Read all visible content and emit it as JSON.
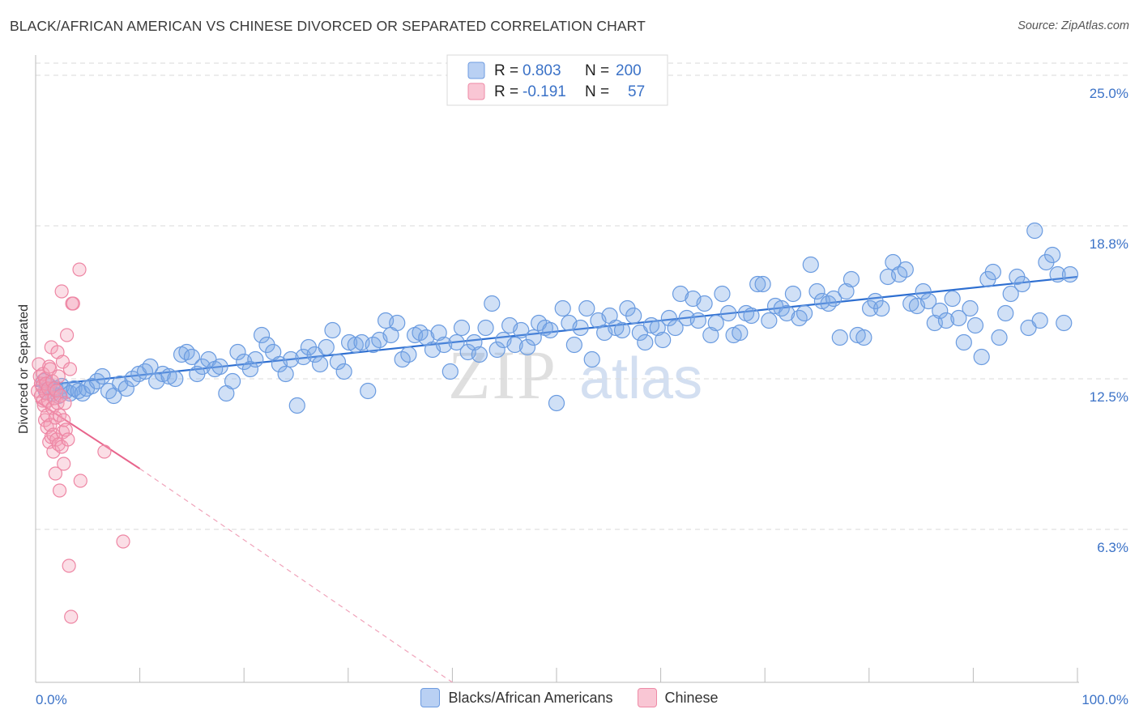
{
  "header": {
    "title": "BLACK/AFRICAN AMERICAN VS CHINESE DIVORCED OR SEPARATED CORRELATION CHART",
    "source": "Source: ZipAtlas.com"
  },
  "watermark": {
    "zip": "ZIP",
    "atlas": "atlas"
  },
  "legend_box": {
    "rows": [
      {
        "r_label": "R =",
        "r_value": "0.803",
        "n_label": "N =",
        "n_value": "200",
        "color": "#9dbff0",
        "stroke": "#6d9be0"
      },
      {
        "r_label": "R =",
        "r_value": "-0.191",
        "n_label": "N =",
        "n_value": "57",
        "color": "#f7b6c8",
        "stroke": "#ee8aa6"
      }
    ]
  },
  "chart_data": {
    "type": "scatter",
    "title": "BLACK/AFRICAN AMERICAN VS CHINESE DIVORCED OR SEPARATED CORRELATION CHART",
    "xlabel": "",
    "ylabel": "Divorced or Separated",
    "xlim": [
      0,
      100
    ],
    "ylim": [
      0,
      25.6
    ],
    "x_tick_labels": [
      "0.0%",
      "100.0%"
    ],
    "y_ticks": [
      6.3,
      12.5,
      18.8,
      25.0
    ],
    "y_tick_labels": [
      "6.3%",
      "12.5%",
      "18.8%",
      "25.0%"
    ],
    "grid": "horizontal dashed",
    "legend_position": "top-center",
    "series": [
      {
        "name": "Blacks/African Americans",
        "color": "#6a9be0",
        "fill": "rgba(120,165,230,0.35)",
        "trend": {
          "x0": 0,
          "y0": 12.2,
          "x1": 100,
          "y1": 16.7,
          "color": "#2e6fd1"
        },
        "points": [
          [
            0.8,
            12.4
          ],
          [
            1.0,
            12.0
          ],
          [
            1.3,
            12.2
          ],
          [
            1.6,
            11.9
          ],
          [
            1.9,
            12.1
          ],
          [
            2.2,
            11.8
          ],
          [
            2.5,
            12.2
          ],
          [
            2.9,
            12.0
          ],
          [
            3.3,
            11.9
          ],
          [
            3.7,
            12.1
          ],
          [
            4.1,
            12.0
          ],
          [
            4.5,
            11.9
          ],
          [
            4.9,
            12.1
          ],
          [
            5.4,
            12.2
          ],
          [
            5.9,
            12.4
          ],
          [
            6.4,
            12.6
          ],
          [
            7.0,
            12.0
          ],
          [
            7.5,
            11.8
          ],
          [
            8.1,
            12.3
          ],
          [
            8.7,
            12.1
          ],
          [
            9.3,
            12.5
          ],
          [
            9.9,
            12.7
          ],
          [
            10.5,
            12.8
          ],
          [
            11.0,
            13.0
          ],
          [
            11.6,
            12.4
          ],
          [
            12.2,
            12.7
          ],
          [
            12.8,
            12.6
          ],
          [
            13.4,
            12.5
          ],
          [
            14.0,
            13.5
          ],
          [
            14.5,
            13.6
          ],
          [
            15.0,
            13.4
          ],
          [
            15.5,
            12.7
          ],
          [
            16.0,
            13.0
          ],
          [
            16.6,
            13.3
          ],
          [
            17.2,
            12.9
          ],
          [
            17.7,
            13.0
          ],
          [
            18.3,
            11.9
          ],
          [
            18.9,
            12.4
          ],
          [
            19.4,
            13.6
          ],
          [
            20.0,
            13.2
          ],
          [
            20.6,
            12.9
          ],
          [
            21.1,
            13.3
          ],
          [
            21.7,
            14.3
          ],
          [
            22.2,
            13.9
          ],
          [
            22.8,
            13.6
          ],
          [
            23.4,
            13.1
          ],
          [
            24.0,
            12.7
          ],
          [
            24.5,
            13.3
          ],
          [
            25.1,
            11.4
          ],
          [
            25.7,
            13.4
          ],
          [
            26.2,
            13.8
          ],
          [
            26.8,
            13.5
          ],
          [
            27.3,
            13.1
          ],
          [
            27.9,
            13.8
          ],
          [
            28.5,
            14.5
          ],
          [
            29.0,
            13.2
          ],
          [
            29.6,
            12.8
          ],
          [
            30.1,
            14.0
          ],
          [
            30.7,
            13.9
          ],
          [
            31.3,
            14.0
          ],
          [
            31.9,
            12.0
          ],
          [
            32.4,
            13.9
          ],
          [
            33.0,
            14.1
          ],
          [
            33.6,
            14.9
          ],
          [
            34.1,
            14.3
          ],
          [
            34.7,
            14.8
          ],
          [
            35.2,
            13.3
          ],
          [
            35.8,
            13.5
          ],
          [
            36.4,
            14.3
          ],
          [
            36.9,
            14.4
          ],
          [
            37.5,
            14.2
          ],
          [
            38.1,
            13.7
          ],
          [
            38.7,
            14.4
          ],
          [
            39.2,
            13.9
          ],
          [
            39.8,
            12.8
          ],
          [
            40.4,
            14.0
          ],
          [
            40.9,
            14.6
          ],
          [
            41.5,
            13.6
          ],
          [
            42.1,
            14.0
          ],
          [
            42.6,
            13.5
          ],
          [
            43.2,
            14.6
          ],
          [
            43.8,
            15.6
          ],
          [
            44.3,
            13.7
          ],
          [
            44.9,
            14.1
          ],
          [
            45.5,
            14.7
          ],
          [
            46.0,
            13.9
          ],
          [
            46.6,
            14.5
          ],
          [
            47.2,
            13.8
          ],
          [
            47.8,
            14.2
          ],
          [
            48.3,
            14.8
          ],
          [
            48.9,
            14.6
          ],
          [
            49.4,
            14.5
          ],
          [
            50.0,
            11.5
          ],
          [
            50.6,
            15.4
          ],
          [
            51.2,
            14.8
          ],
          [
            51.7,
            13.9
          ],
          [
            52.3,
            14.6
          ],
          [
            52.9,
            15.4
          ],
          [
            53.4,
            13.3
          ],
          [
            54.0,
            14.9
          ],
          [
            54.6,
            14.4
          ],
          [
            55.1,
            15.1
          ],
          [
            55.7,
            14.6
          ],
          [
            56.3,
            14.5
          ],
          [
            56.8,
            15.4
          ],
          [
            57.4,
            15.1
          ],
          [
            58.0,
            14.4
          ],
          [
            58.5,
            14.0
          ],
          [
            59.1,
            14.7
          ],
          [
            59.7,
            14.6
          ],
          [
            60.2,
            14.1
          ],
          [
            60.8,
            15.0
          ],
          [
            61.4,
            14.6
          ],
          [
            61.9,
            16.0
          ],
          [
            62.5,
            15.0
          ],
          [
            63.1,
            15.8
          ],
          [
            63.6,
            14.9
          ],
          [
            64.2,
            15.6
          ],
          [
            64.8,
            14.3
          ],
          [
            65.3,
            14.8
          ],
          [
            65.9,
            16.0
          ],
          [
            66.5,
            15.2
          ],
          [
            67.0,
            14.3
          ],
          [
            67.6,
            14.4
          ],
          [
            68.2,
            15.2
          ],
          [
            68.7,
            15.1
          ],
          [
            69.3,
            16.4
          ],
          [
            69.8,
            16.4
          ],
          [
            70.4,
            14.9
          ],
          [
            71.0,
            15.5
          ],
          [
            71.6,
            15.4
          ],
          [
            72.1,
            15.2
          ],
          [
            72.7,
            16.0
          ],
          [
            73.3,
            15.0
          ],
          [
            73.8,
            15.2
          ],
          [
            74.4,
            17.2
          ],
          [
            75.0,
            16.1
          ],
          [
            75.5,
            15.7
          ],
          [
            76.1,
            15.6
          ],
          [
            76.6,
            15.8
          ],
          [
            77.2,
            14.2
          ],
          [
            77.8,
            16.1
          ],
          [
            78.3,
            16.6
          ],
          [
            78.9,
            14.3
          ],
          [
            79.5,
            14.2
          ],
          [
            80.1,
            15.4
          ],
          [
            80.6,
            15.7
          ],
          [
            81.2,
            15.4
          ],
          [
            81.8,
            16.7
          ],
          [
            82.3,
            17.3
          ],
          [
            82.9,
            16.8
          ],
          [
            83.5,
            17.0
          ],
          [
            84.0,
            15.6
          ],
          [
            84.6,
            15.5
          ],
          [
            85.2,
            16.1
          ],
          [
            85.7,
            15.7
          ],
          [
            86.3,
            14.8
          ],
          [
            86.8,
            15.3
          ],
          [
            87.4,
            14.9
          ],
          [
            88.0,
            15.8
          ],
          [
            88.6,
            15.0
          ],
          [
            89.1,
            14.0
          ],
          [
            89.7,
            15.4
          ],
          [
            90.2,
            14.7
          ],
          [
            90.8,
            13.4
          ],
          [
            91.4,
            16.6
          ],
          [
            91.9,
            16.9
          ],
          [
            92.5,
            14.2
          ],
          [
            93.1,
            15.2
          ],
          [
            93.6,
            16.0
          ],
          [
            94.2,
            16.7
          ],
          [
            94.7,
            16.4
          ],
          [
            95.3,
            14.6
          ],
          [
            95.9,
            18.6
          ],
          [
            96.4,
            14.9
          ],
          [
            97.0,
            17.3
          ],
          [
            97.6,
            17.6
          ],
          [
            98.1,
            16.8
          ],
          [
            98.7,
            14.8
          ],
          [
            99.3,
            16.8
          ]
        ]
      },
      {
        "name": "Chinese",
        "color": "#ee86a4",
        "fill": "rgba(244,160,184,0.35)",
        "trend": {
          "x0": 0,
          "y0": 11.6,
          "x1": 10,
          "y1": 8.8,
          "x_dash_end": 40,
          "y_dash_end": 0.0,
          "color": "#e8648c"
        },
        "points": [
          [
            0.2,
            12.0
          ],
          [
            0.3,
            13.1
          ],
          [
            0.4,
            12.6
          ],
          [
            0.5,
            12.3
          ],
          [
            0.5,
            11.8
          ],
          [
            0.6,
            12.2
          ],
          [
            0.7,
            11.6
          ],
          [
            0.7,
            12.7
          ],
          [
            0.8,
            11.4
          ],
          [
            0.9,
            12.5
          ],
          [
            0.9,
            10.8
          ],
          [
            1.0,
            11.9
          ],
          [
            1.0,
            12.3
          ],
          [
            1.1,
            10.5
          ],
          [
            1.1,
            11.0
          ],
          [
            1.2,
            12.1
          ],
          [
            1.2,
            11.6
          ],
          [
            1.3,
            9.9
          ],
          [
            1.3,
            13.0
          ],
          [
            1.4,
            10.6
          ],
          [
            1.4,
            12.9
          ],
          [
            1.5,
            10.1
          ],
          [
            1.5,
            13.8
          ],
          [
            1.6,
            11.3
          ],
          [
            1.6,
            12.4
          ],
          [
            1.7,
            10.2
          ],
          [
            1.7,
            9.5
          ],
          [
            1.8,
            11.7
          ],
          [
            1.8,
            12.1
          ],
          [
            1.9,
            10.9
          ],
          [
            1.9,
            8.6
          ],
          [
            2.0,
            12.0
          ],
          [
            2.0,
            10.0
          ],
          [
            2.1,
            13.6
          ],
          [
            2.1,
            11.5
          ],
          [
            2.2,
            12.6
          ],
          [
            2.2,
            9.8
          ],
          [
            2.3,
            7.9
          ],
          [
            2.3,
            11.0
          ],
          [
            2.4,
            11.8
          ],
          [
            2.5,
            16.1
          ],
          [
            2.5,
            9.7
          ],
          [
            2.6,
            10.3
          ],
          [
            2.6,
            13.2
          ],
          [
            2.7,
            9.0
          ],
          [
            2.7,
            10.8
          ],
          [
            2.8,
            11.5
          ],
          [
            2.9,
            10.4
          ],
          [
            3.0,
            14.3
          ],
          [
            3.1,
            10.0
          ],
          [
            3.2,
            4.8
          ],
          [
            3.3,
            12.9
          ],
          [
            3.4,
            2.7
          ],
          [
            3.5,
            15.6
          ],
          [
            3.6,
            15.6
          ],
          [
            4.3,
            8.3
          ],
          [
            4.2,
            17.0
          ],
          [
            6.6,
            9.5
          ],
          [
            8.4,
            5.8
          ]
        ]
      }
    ]
  },
  "bottom_legend": [
    {
      "label": "Blacks/African Americans",
      "color": "#b9d0f3",
      "stroke": "#6d9be0"
    },
    {
      "label": "Chinese",
      "color": "#f9c6d4",
      "stroke": "#ee8aa6"
    }
  ]
}
